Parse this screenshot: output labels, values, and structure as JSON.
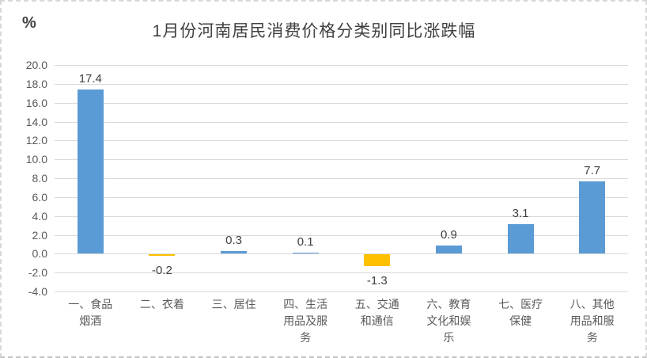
{
  "chart_data": {
    "type": "bar",
    "title": "1月份河南居民消费价格分类别同比涨跌幅",
    "unit_label": "%",
    "categories": [
      "一、食品\n烟酒",
      "二、衣着",
      "三、居住",
      "四、生活\n用品及服\n务",
      "五、交通\n和通信",
      "六、教育\n文化和娱\n乐",
      "七、医疗\n保健",
      "八、其他\n用品和服\n务"
    ],
    "values": [
      17.4,
      -0.2,
      0.3,
      0.1,
      -1.3,
      0.9,
      3.1,
      7.7
    ],
    "data_labels": [
      "17.4",
      "-0.2",
      "0.3",
      "0.1",
      "-1.3",
      "0.9",
      "3.1",
      "7.7"
    ],
    "xlabel": "",
    "ylabel": "%",
    "ylim": [
      -4.0,
      20.0
    ],
    "ytick_step": 2.0,
    "ytick_labels": [
      "20.0",
      "18.0",
      "16.0",
      "14.0",
      "12.0",
      "10.0",
      "8.0",
      "6.0",
      "4.0",
      "2.0",
      "0.0",
      "-2.0",
      "-4.0"
    ],
    "grid": true,
    "legend_position": "none",
    "colors": {
      "positive_bar": "#5B9BD5",
      "negative_bar": "#FFC000",
      "gridline": "#D9D9D9",
      "axis_text": "#595959",
      "title_text": "#404040",
      "data_label_text": "#404040"
    }
  }
}
